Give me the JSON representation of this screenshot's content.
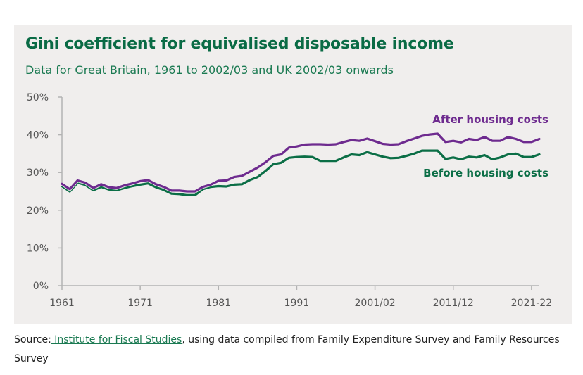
{
  "title": "Gini coefficient for equivalised disposable income",
  "subtitle": "Data for Great Britain, 1961 to 2002/03 and UK 2002/03 onwards",
  "source": {
    "prefix": "Source:",
    "link_text": " Institute for Fiscal Studies",
    "suffix": ", using data compiled from Family Expenditure Survey and Family Resources Survey"
  },
  "colors": {
    "after": "#6e2b8f",
    "before": "#0b6e46",
    "axis": "#b3b3b3",
    "background": "#f0eeed"
  },
  "chart_data": {
    "type": "line",
    "title": "Gini coefficient for equivalised disposable income",
    "subtitle": "Data for Great Britain, 1961 to 2002/03 and UK 2002/03 onwards",
    "xlabel": "",
    "ylabel": "",
    "ylim": [
      0,
      50
    ],
    "xlim": [
      1961,
      2022
    ],
    "y_ticks": [
      0,
      10,
      20,
      30,
      40,
      50
    ],
    "y_tick_labels": [
      "0%",
      "10%",
      "20%",
      "30%",
      "40%",
      "50%"
    ],
    "x_ticks": [
      1961,
      1971,
      1981,
      1991,
      2001,
      2011,
      2021
    ],
    "x_tick_labels": [
      "1961",
      "1971",
      "1981",
      "1991",
      "2001/02",
      "2011/12",
      "2021-22"
    ],
    "grid": false,
    "legend": "inline-right",
    "x": [
      1961,
      1962,
      1963,
      1964,
      1965,
      1966,
      1967,
      1968,
      1969,
      1970,
      1971,
      1972,
      1973,
      1974,
      1975,
      1976,
      1977,
      1978,
      1979,
      1980,
      1981,
      1982,
      1983,
      1984,
      1985,
      1986,
      1987,
      1988,
      1989,
      1990,
      1991,
      1992,
      1993,
      1994,
      1995,
      1996,
      1997,
      1998,
      1999,
      2000,
      2001,
      2002,
      2003,
      2004,
      2005,
      2006,
      2007,
      2008,
      2009,
      2010,
      2011,
      2012,
      2013,
      2014,
      2015,
      2016,
      2017,
      2018,
      2019,
      2020,
      2021,
      2022
    ],
    "series": [
      {
        "name": "After housing costs",
        "values": [
          27.0,
          25.6,
          27.9,
          27.3,
          25.9,
          26.9,
          26.1,
          25.9,
          26.6,
          27.1,
          27.7,
          28.0,
          26.9,
          26.2,
          25.2,
          25.2,
          25.0,
          25.0,
          26.2,
          26.8,
          27.8,
          27.9,
          28.8,
          29.1,
          30.2,
          31.3,
          32.7,
          34.4,
          34.8,
          36.6,
          36.9,
          37.4,
          37.5,
          37.5,
          37.4,
          37.5,
          38.1,
          38.6,
          38.4,
          39.0,
          38.3,
          37.6,
          37.4,
          37.5,
          38.3,
          39.0,
          39.7,
          40.1,
          40.3,
          38.1,
          38.4,
          38.0,
          38.9,
          38.6,
          39.4,
          38.4,
          38.4,
          39.4,
          38.9,
          38.1,
          38.1,
          38.9
        ]
      },
      {
        "name": "Before housing costs",
        "values": [
          26.4,
          25.0,
          27.3,
          26.7,
          25.3,
          26.2,
          25.5,
          25.3,
          25.9,
          26.4,
          26.8,
          27.1,
          26.1,
          25.4,
          24.4,
          24.3,
          24.0,
          24.0,
          25.6,
          26.2,
          26.4,
          26.3,
          26.8,
          26.9,
          28.0,
          28.8,
          30.4,
          32.2,
          32.6,
          33.9,
          34.1,
          34.2,
          34.1,
          33.1,
          33.1,
          33.1,
          34.0,
          34.8,
          34.6,
          35.4,
          34.8,
          34.2,
          33.8,
          33.9,
          34.4,
          35.0,
          35.8,
          35.8,
          35.8,
          33.6,
          34.0,
          33.5,
          34.2,
          34.0,
          34.6,
          33.5,
          34.0,
          34.8,
          35.0,
          34.1,
          34.1,
          34.8
        ]
      }
    ]
  }
}
